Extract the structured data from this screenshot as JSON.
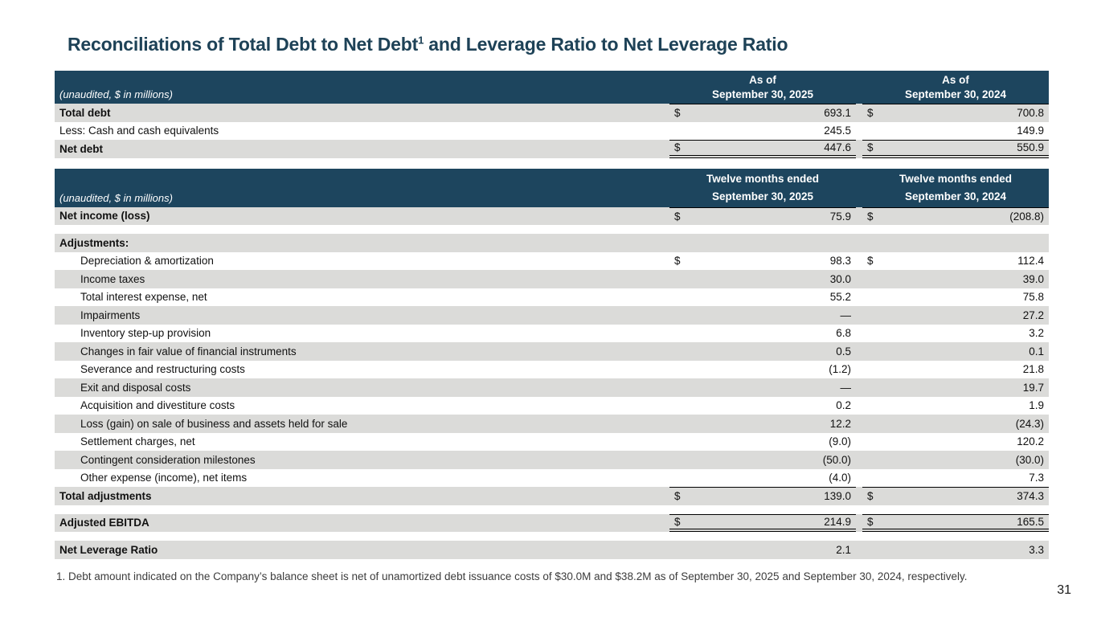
{
  "colors": {
    "band": "#1d455e",
    "row_shade": "#dbdbd9",
    "title_text": "#1e4257",
    "border": "#000000"
  },
  "title": {
    "part1": "Reconciliations of Total Debt to Net Debt",
    "superscript": "1",
    "part2": " and Leverage Ratio to Net Leverage Ratio"
  },
  "page_number": "31",
  "footnote": "1. Debt amount indicated on the Company’s balance sheet is net of unamortized debt issuance costs of $30.0M and $38.2M as of September 30, 2025 and September 30, 2024, respectively.",
  "table1": {
    "unaudited": "(unaudited, $ in millions)",
    "col1": {
      "line1": "As of",
      "line2": "September 30, 2025"
    },
    "col2": {
      "line1": "As of",
      "line2": "September 30, 2024"
    },
    "rows": [
      {
        "label": "Total debt",
        "bold": true,
        "shade": true,
        "d1": "$",
        "v1": "693.1",
        "d2": "$",
        "v2": "700.8",
        "bt": true
      },
      {
        "label": "Less: Cash and cash equivalents",
        "v1": "245.5",
        "v2": "149.9"
      },
      {
        "label": "Net debt",
        "bold": true,
        "shade": true,
        "d1": "$",
        "v1": "447.6",
        "d2": "$",
        "v2": "550.9",
        "bt": true,
        "dbl": true
      }
    ]
  },
  "table2": {
    "unaudited": "(unaudited, $ in millions)",
    "col1": {
      "line1": "Twelve months ended",
      "line2": "September 30, 2025"
    },
    "col2": {
      "line1": "Twelve months ended",
      "line2": "September 30, 2024"
    },
    "rows": [
      {
        "label": "Net income (loss)",
        "bold": true,
        "shade": true,
        "d1": "$",
        "v1": "75.9",
        "d2": "$",
        "v2": "(208.8)",
        "bt": true
      },
      {
        "spacer": true
      },
      {
        "label": "Adjustments:",
        "bold": true,
        "shade": true,
        "v1": "",
        "v2": ""
      },
      {
        "label": "Depreciation & amortization",
        "indent": true,
        "d1": "$",
        "v1": "98.3",
        "d2": "$",
        "v2": "112.4"
      },
      {
        "label": "Income taxes",
        "indent": true,
        "shade": true,
        "v1": "30.0",
        "v2": "39.0"
      },
      {
        "label": "Total interest expense, net",
        "indent": true,
        "v1": "55.2",
        "v2": "75.8"
      },
      {
        "label": "Impairments",
        "indent": true,
        "shade": true,
        "v1": "—",
        "v2": "27.2"
      },
      {
        "label": "Inventory step-up provision",
        "indent": true,
        "v1": "6.8",
        "v2": "3.2"
      },
      {
        "label": "Changes in fair value of financial instruments",
        "indent": true,
        "shade": true,
        "v1": "0.5",
        "v2": "0.1"
      },
      {
        "label": "Severance and restructuring costs",
        "indent": true,
        "v1": "(1.2)",
        "v2": "21.8"
      },
      {
        "label": "Exit and disposal costs",
        "indent": true,
        "shade": true,
        "v1": "—",
        "v2": "19.7"
      },
      {
        "label": "Acquisition and divestiture costs",
        "indent": true,
        "v1": "0.2",
        "v2": "1.9"
      },
      {
        "label": "Loss (gain) on sale of business and assets held for sale",
        "indent": true,
        "shade": true,
        "v1": "12.2",
        "v2": "(24.3)"
      },
      {
        "label": "Settlement charges, net",
        "indent": true,
        "v1": "(9.0)",
        "v2": "120.2"
      },
      {
        "label": "Contingent consideration milestones",
        "indent": true,
        "shade": true,
        "v1": "(50.0)",
        "v2": "(30.0)"
      },
      {
        "label": "Other expense (income), net items",
        "indent": true,
        "v1": "(4.0)",
        "v2": "7.3"
      },
      {
        "label": "Total adjustments",
        "bold": true,
        "shade": true,
        "d1": "$",
        "v1": "139.0",
        "d2": "$",
        "v2": "374.3",
        "bt": true
      },
      {
        "spacer": true
      },
      {
        "label": "Adjusted EBITDA",
        "bold": true,
        "shade": true,
        "d1": "$",
        "v1": "214.9",
        "d2": "$",
        "v2": "165.5",
        "bt": true,
        "dbl": true
      },
      {
        "spacer": true
      },
      {
        "label": "Net Leverage Ratio",
        "bold": true,
        "shade": true,
        "v1": "2.1",
        "v2": "3.3"
      }
    ]
  }
}
